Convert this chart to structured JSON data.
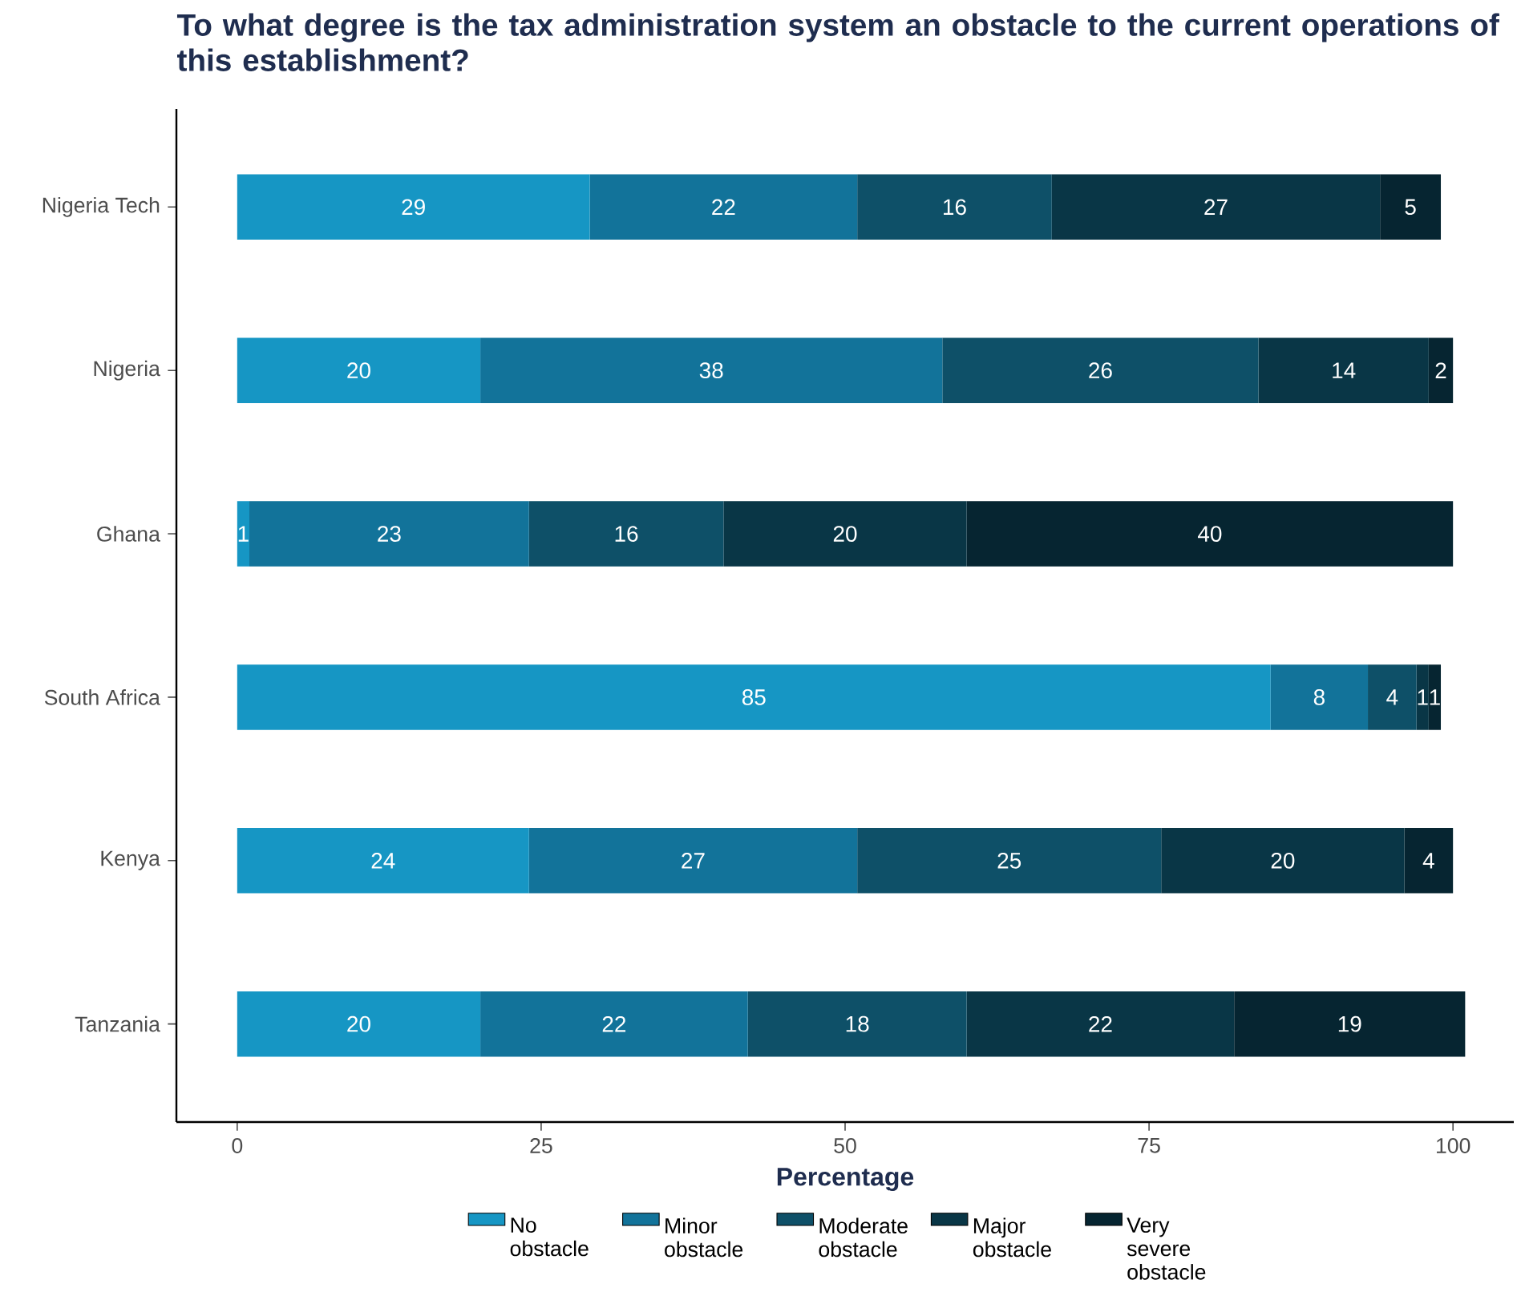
{
  "chart_data": {
    "type": "bar",
    "orientation": "horizontal",
    "stacked": true,
    "title": "To what degree is the tax administration system an obstacle to the current operations of this establishment?",
    "xlabel": "Percentage",
    "categories": [
      "Nigeria Tech",
      "Nigeria",
      "Ghana",
      "South Africa",
      "Kenya",
      "Tanzania"
    ],
    "series": [
      {
        "name": "No obstacle",
        "color": "#1696c4",
        "values": [
          29,
          20,
          1,
          85,
          24,
          20
        ]
      },
      {
        "name": "Minor obstacle",
        "color": "#12739a",
        "values": [
          22,
          38,
          23,
          8,
          27,
          22
        ]
      },
      {
        "name": "Moderate obstacle",
        "color": "#0e5068",
        "values": [
          16,
          26,
          16,
          4,
          25,
          18
        ]
      },
      {
        "name": "Major obstacle",
        "color": "#093646",
        "values": [
          27,
          14,
          20,
          1,
          20,
          22
        ]
      },
      {
        "name": "Very severe obstacle",
        "color": "#062531",
        "values": [
          5,
          2,
          40,
          1,
          4,
          19
        ]
      }
    ],
    "xlim": [
      -5,
      105
    ],
    "xticks": [
      0,
      25,
      50,
      75,
      100
    ],
    "data_labels": true,
    "legend": "bottom",
    "grid": false
  }
}
